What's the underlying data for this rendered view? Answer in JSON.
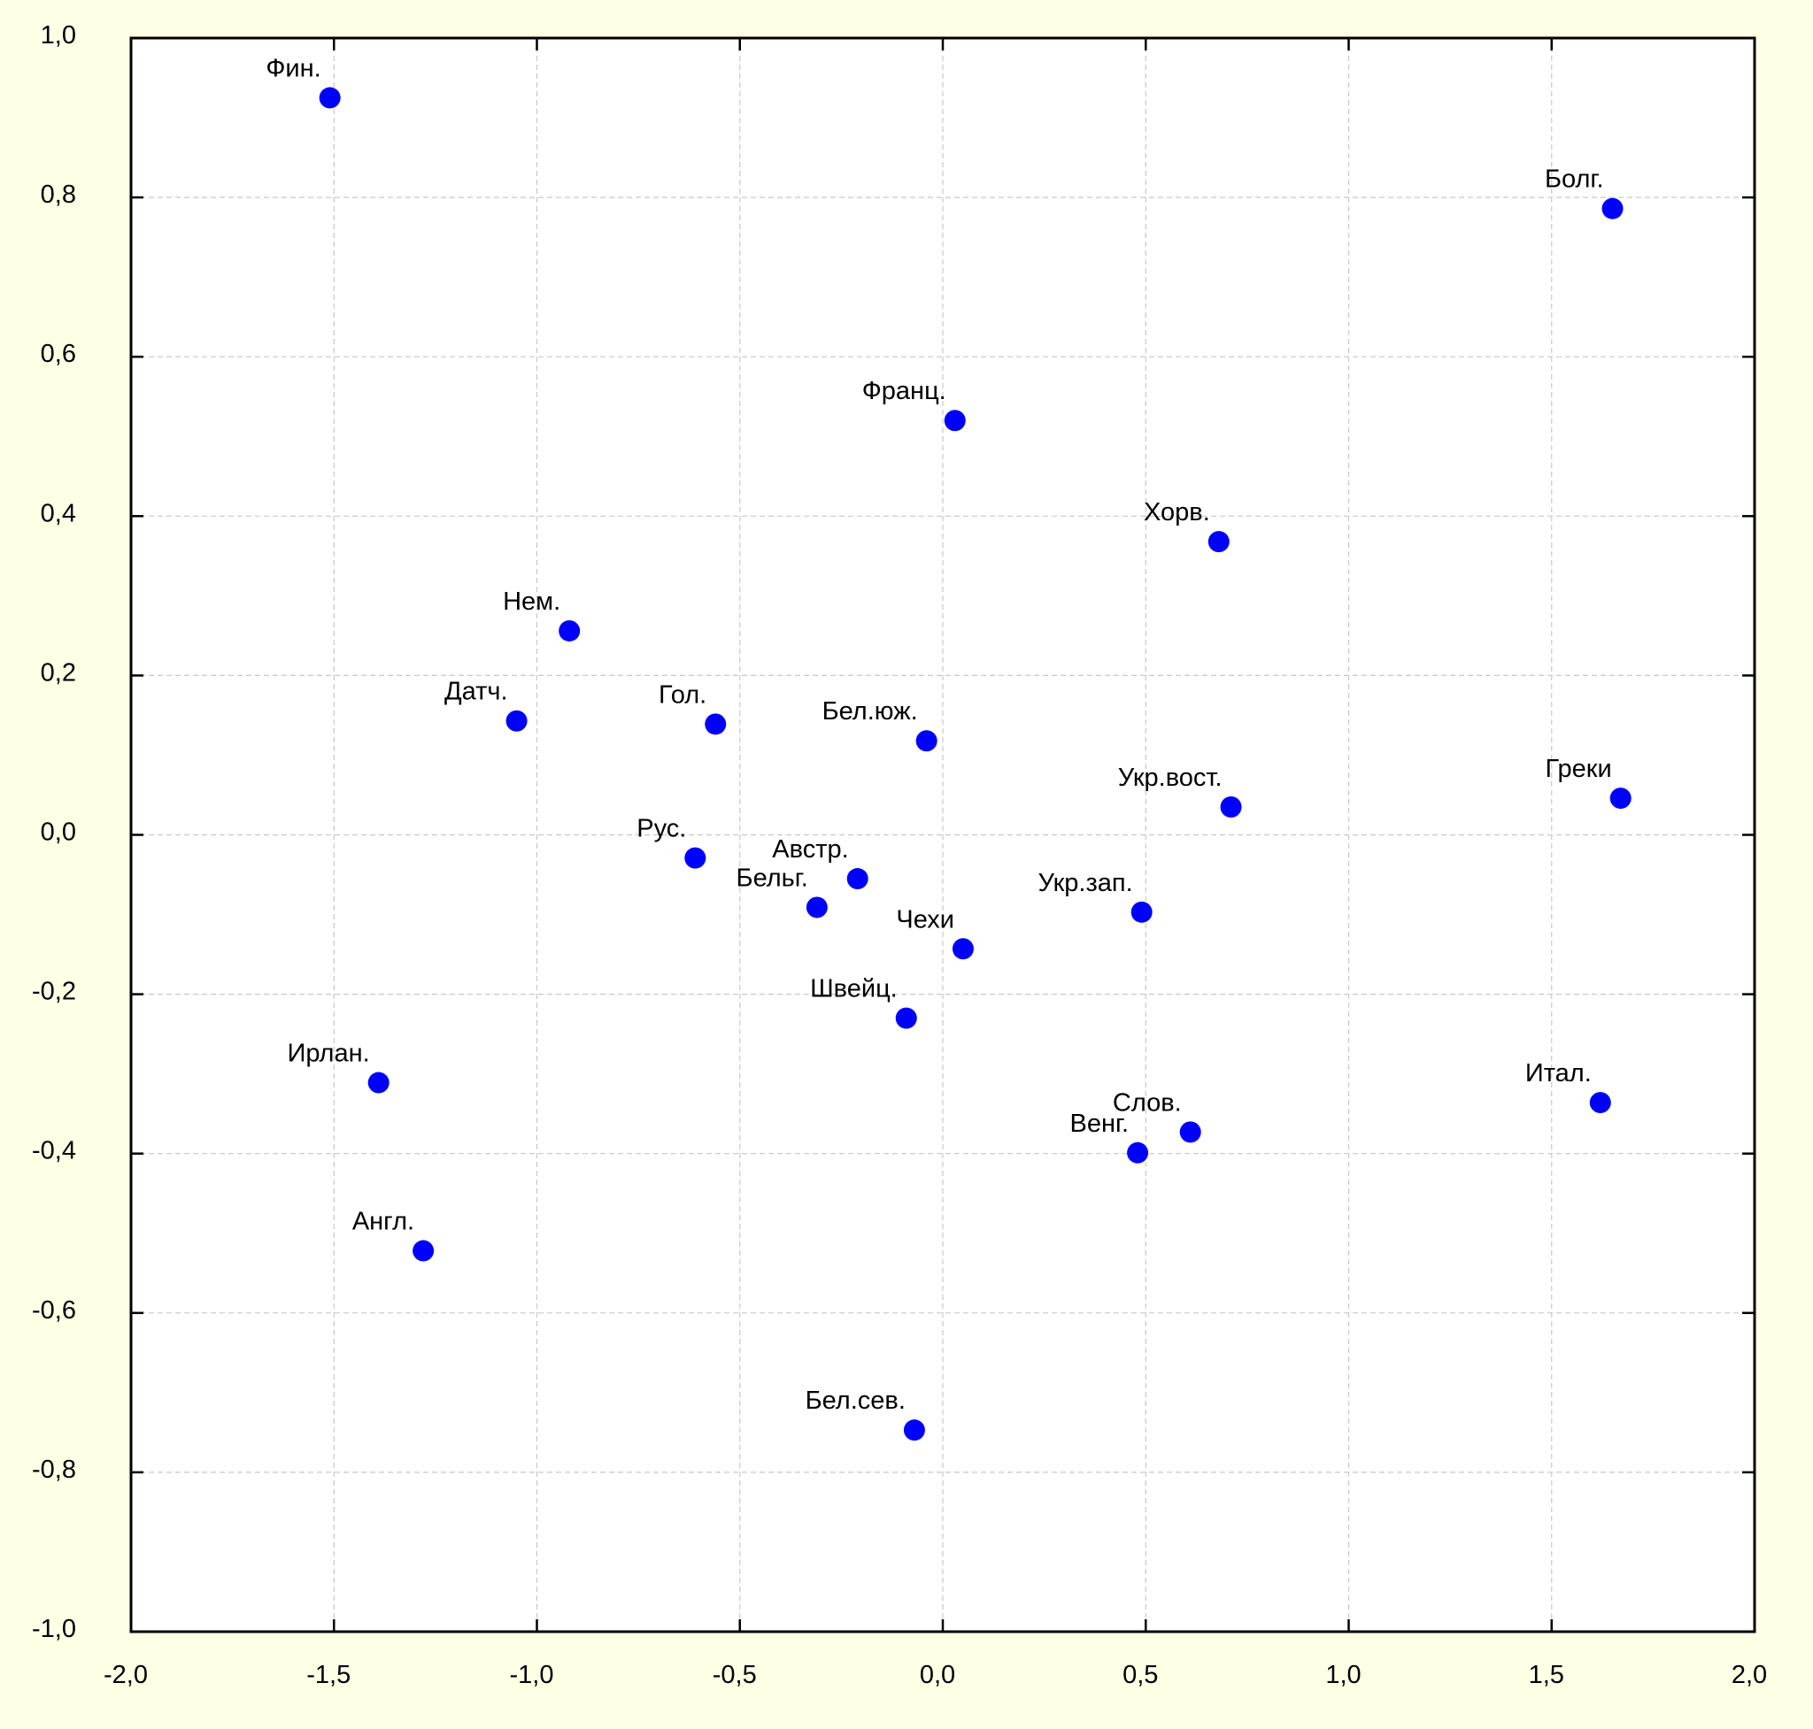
{
  "chart_data": {
    "type": "scatter",
    "xlim": [
      -2.0,
      2.0
    ],
    "ylim": [
      -1.0,
      1.0
    ],
    "x_ticks": [
      "-2,0",
      "-1,5",
      "-1,0",
      "-0,5",
      "0,0",
      "0,5",
      "1,0",
      "1,5",
      "2,0"
    ],
    "y_ticks": [
      "1,0",
      "0,8",
      "0,6",
      "0,4",
      "0,2",
      "0,0",
      "-0,2",
      "-0,4",
      "-0,6",
      "-0,8",
      "-1,0"
    ],
    "grid": true,
    "marker_color": "#0000ff",
    "points": [
      {
        "label": "Фин.",
        "x": -1.51,
        "y": 0.925
      },
      {
        "label": "Болг.",
        "x": 1.65,
        "y": 0.786
      },
      {
        "label": "Франц.",
        "x": 0.03,
        "y": 0.52
      },
      {
        "label": "Хорв.",
        "x": 0.68,
        "y": 0.368
      },
      {
        "label": "Нем.",
        "x": -0.92,
        "y": 0.256
      },
      {
        "label": "Датч.",
        "x": -1.05,
        "y": 0.143
      },
      {
        "label": "Гол.",
        "x": -0.56,
        "y": 0.139
      },
      {
        "label": "Бел.юж.",
        "x": -0.04,
        "y": 0.118
      },
      {
        "label": "Укр.вост.",
        "x": 0.71,
        "y": 0.035
      },
      {
        "label": "Греки",
        "x": 1.67,
        "y": 0.046
      },
      {
        "label": "Рус.",
        "x": -0.61,
        "y": -0.029
      },
      {
        "label": "Австр.",
        "x": -0.21,
        "y": -0.055
      },
      {
        "label": "Бельг.",
        "x": -0.31,
        "y": -0.091
      },
      {
        "label": "Укр.зап.",
        "x": 0.49,
        "y": -0.097
      },
      {
        "label": "Чехи",
        "x": 0.05,
        "y": -0.143
      },
      {
        "label": "Швейц.",
        "x": -0.09,
        "y": -0.23
      },
      {
        "label": "Ирлан.",
        "x": -1.39,
        "y": -0.311
      },
      {
        "label": "Итал.",
        "x": 1.62,
        "y": -0.336
      },
      {
        "label": "Слов.",
        "x": 0.61,
        "y": -0.373
      },
      {
        "label": "Венг.",
        "x": 0.48,
        "y": -0.399
      },
      {
        "label": "Англ.",
        "x": -1.28,
        "y": -0.522
      },
      {
        "label": "Бел.сев.",
        "x": -0.07,
        "y": -0.747
      }
    ]
  }
}
